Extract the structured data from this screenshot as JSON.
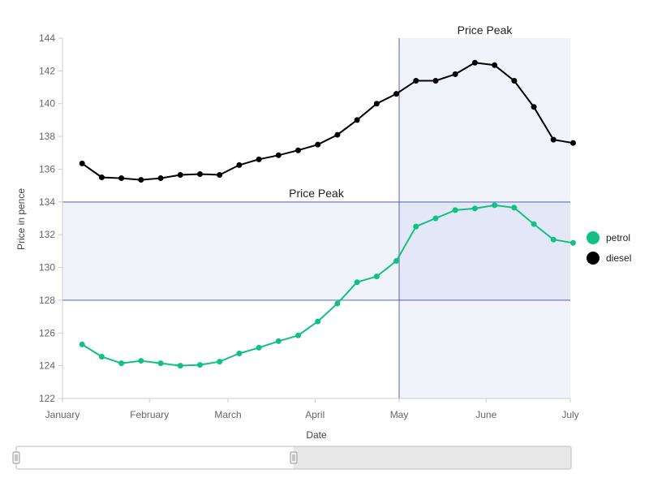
{
  "chart_data": {
    "type": "line",
    "title": "",
    "xlabel": "Date",
    "ylabel": "Price in pence",
    "ylim": [
      122,
      144
    ],
    "y_ticks": [
      122,
      124,
      126,
      128,
      130,
      132,
      134,
      136,
      138,
      140,
      142,
      144
    ],
    "x_ticks": [
      {
        "label": "January",
        "date": "2017-01-01"
      },
      {
        "label": "February",
        "date": "2017-02-01"
      },
      {
        "label": "March",
        "date": "2017-03-01"
      },
      {
        "label": "April",
        "date": "2017-04-01"
      },
      {
        "label": "May",
        "date": "2017-05-01"
      },
      {
        "label": "June",
        "date": "2017-06-01"
      },
      {
        "label": "July",
        "date": "2017-07-01"
      }
    ],
    "xlim": [
      "2017-01-01",
      "2017-07-01"
    ],
    "x": [
      "2017-01-08",
      "2017-01-15",
      "2017-01-22",
      "2017-01-29",
      "2017-02-05",
      "2017-02-12",
      "2017-02-19",
      "2017-02-26",
      "2017-03-05",
      "2017-03-12",
      "2017-03-19",
      "2017-03-26",
      "2017-04-02",
      "2017-04-09",
      "2017-04-16",
      "2017-04-23",
      "2017-04-30",
      "2017-05-07",
      "2017-05-14",
      "2017-05-21",
      "2017-05-28",
      "2017-06-04",
      "2017-06-11",
      "2017-06-18",
      "2017-06-25",
      "2017-07-02"
    ],
    "series": [
      {
        "name": "petrol",
        "color": "#10c281",
        "values": [
          125.3,
          124.55,
          124.15,
          124.3,
          124.15,
          124.0,
          124.05,
          124.25,
          124.75,
          125.1,
          125.5,
          125.85,
          126.7,
          127.8,
          129.1,
          129.45,
          130.4,
          132.5,
          133.0,
          133.5,
          133.6,
          133.8,
          133.65,
          132.65,
          131.7,
          131.5
        ]
      },
      {
        "name": "diesel",
        "color": "#000000",
        "values": [
          136.35,
          135.5,
          135.45,
          135.35,
          135.45,
          135.65,
          135.7,
          135.65,
          136.25,
          136.6,
          136.85,
          137.15,
          137.5,
          138.1,
          139.0,
          140.0,
          140.6,
          141.4,
          141.4,
          141.8,
          142.5,
          142.35,
          141.4,
          139.8,
          137.8,
          137.6
        ]
      }
    ],
    "annotations": [
      {
        "type": "horizontal-band",
        "label": "Price Peak",
        "y_range": [
          128,
          134
        ]
      },
      {
        "type": "vertical-band",
        "label": "Price Peak",
        "x_range": [
          "2017-05-01",
          "2017-07-01"
        ]
      }
    ],
    "grid": false,
    "legend": {
      "position": "right",
      "entries": [
        "petrol",
        "diesel"
      ]
    },
    "band_color": "#3f51b5",
    "navigator": {
      "selected_range": [
        "2017-01-01",
        "2017-07-01"
      ]
    }
  }
}
